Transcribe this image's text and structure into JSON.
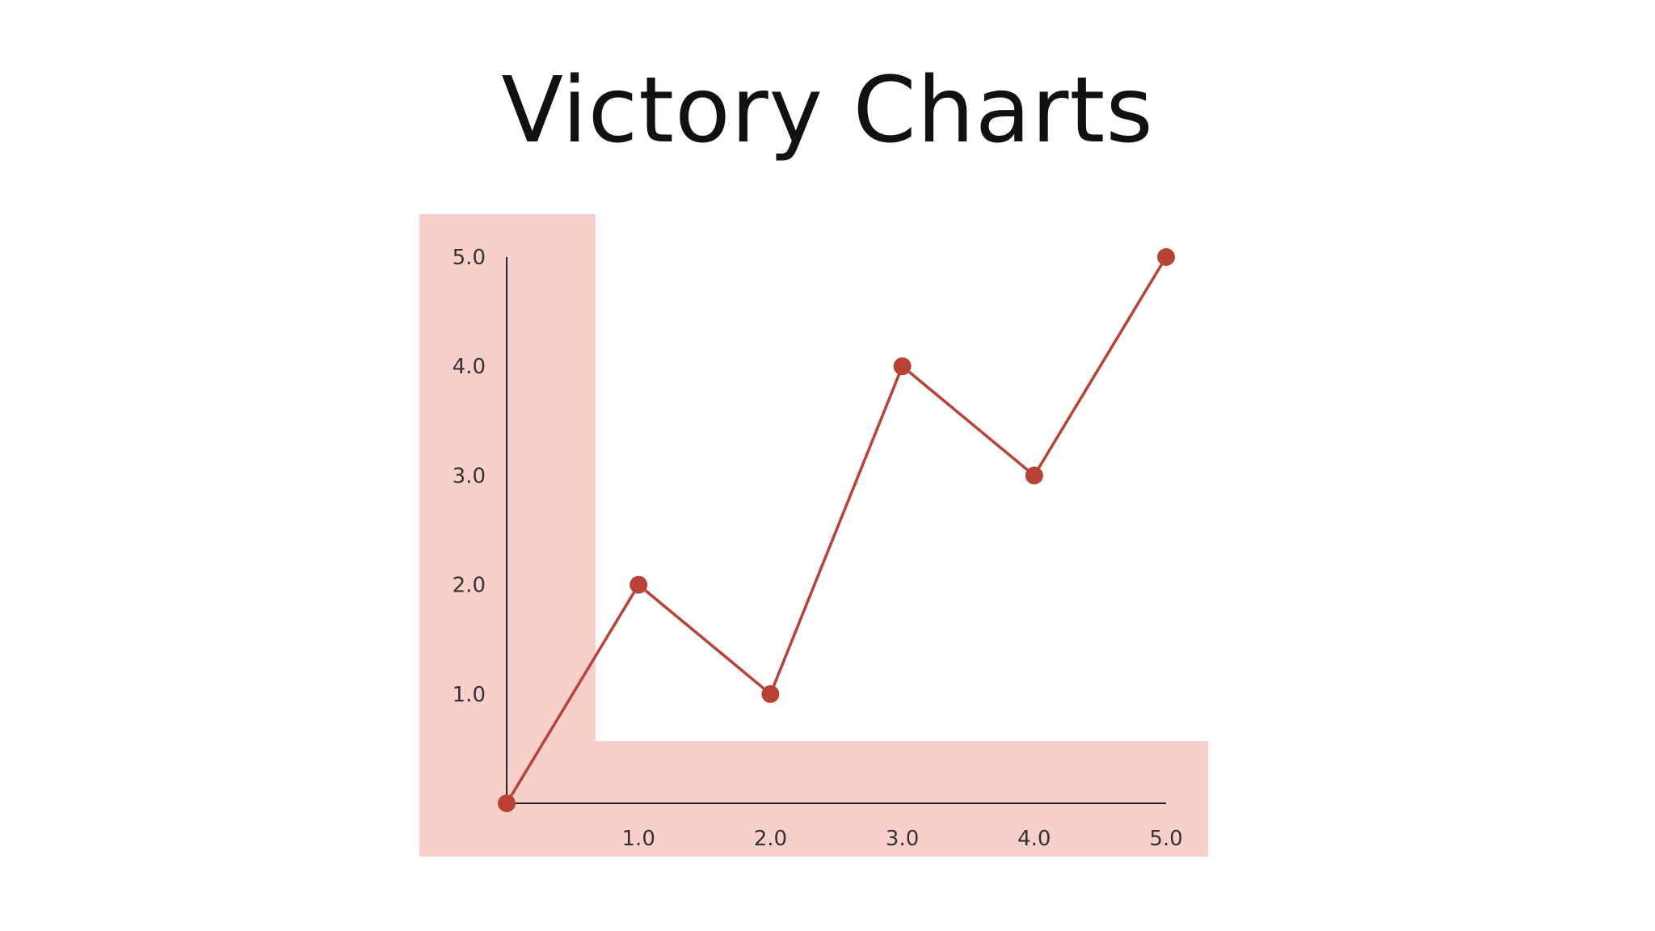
{
  "slide": {
    "title": "Victory Charts"
  },
  "chart_data": {
    "type": "line",
    "title": "",
    "xlabel": "",
    "ylabel": "",
    "x": [
      0,
      1,
      2,
      3,
      4,
      5
    ],
    "series": [
      {
        "values": [
          0,
          2,
          1,
          4,
          3,
          5
        ]
      }
    ],
    "xlim": [
      0,
      5
    ],
    "ylim": [
      0,
      5
    ],
    "x_ticks": [
      "1.0",
      "2.0",
      "3.0",
      "4.0",
      "5.0"
    ],
    "y_ticks": [
      "1.0",
      "2.0",
      "3.0",
      "4.0",
      "5.0"
    ],
    "grid": false,
    "legend": "none",
    "highlight": "axes regions shaded",
    "colors": {
      "line": "#b94237",
      "point": "#b94237",
      "axis": "#222222",
      "highlight": "#f9cfcb"
    }
  }
}
